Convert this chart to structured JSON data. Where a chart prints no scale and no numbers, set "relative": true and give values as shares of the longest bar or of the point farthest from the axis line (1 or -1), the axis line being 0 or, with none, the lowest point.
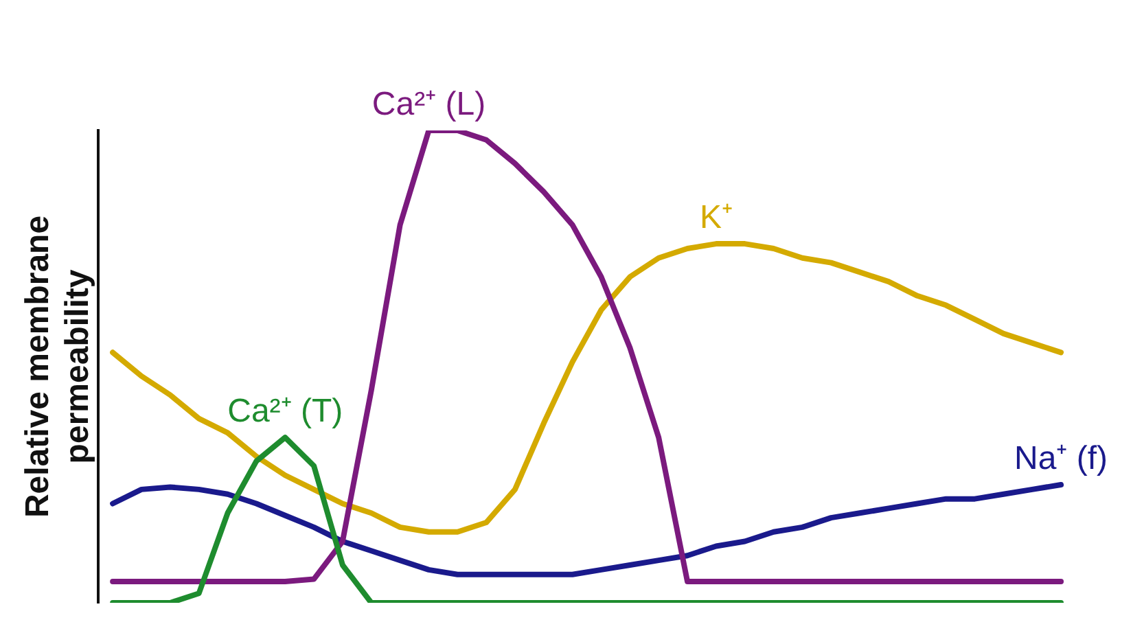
{
  "chart_data": {
    "type": "line",
    "relative": true,
    "ylabel": "Relative membrane permeability",
    "legend": false,
    "marker": "none",
    "line_style": "solid",
    "grid": false,
    "tick_labels": false,
    "categories": [
      null,
      null,
      null,
      null,
      null,
      null,
      null,
      null,
      null,
      null,
      null,
      null,
      null,
      null,
      null,
      null,
      null,
      null,
      null,
      null,
      null,
      null,
      null,
      null,
      null,
      null,
      null,
      null,
      null,
      null,
      null,
      null,
      null,
      null
    ],
    "series": [
      {
        "name": "Ca²⁺ (T)",
        "color": "#1e8c2e",
        "values": [
          0,
          0,
          0,
          0.02,
          0.19,
          0.3,
          0.35,
          0.29,
          0.08,
          0,
          0,
          0,
          0,
          0,
          0,
          0,
          0,
          0,
          0,
          0,
          0,
          0,
          0,
          0,
          0,
          0,
          0,
          0,
          0,
          0,
          0,
          0,
          0,
          0
        ]
      },
      {
        "name": "Ca²⁺ (L)",
        "color": "#7b1a7e",
        "values": [
          0.045,
          0.045,
          0.045,
          0.045,
          0.045,
          0.045,
          0.045,
          0.05,
          0.13,
          0.45,
          0.8,
          1,
          1,
          0.98,
          0.93,
          0.87,
          0.8,
          0.69,
          0.54,
          0.35,
          0.045,
          0.045,
          0.045,
          0.045,
          0.045,
          0.045,
          0.045,
          0.045,
          0.045,
          0.045,
          0.045,
          0.045,
          0.045,
          0.045
        ]
      },
      {
        "name": "K⁺",
        "color": "#d4aa00",
        "values": [
          0.53,
          0.48,
          0.44,
          0.39,
          0.36,
          0.31,
          0.27,
          0.24,
          0.21,
          0.19,
          0.16,
          0.15,
          0.15,
          0.17,
          0.24,
          0.38,
          0.51,
          0.62,
          0.69,
          0.73,
          0.75,
          0.76,
          0.76,
          0.75,
          0.73,
          0.72,
          0.7,
          0.68,
          0.65,
          0.63,
          0.6,
          0.57,
          0.55,
          0.53
        ]
      },
      {
        "name": "Na⁺ (f)",
        "color": "#1a1a8c",
        "values": [
          0.21,
          0.24,
          0.245,
          0.24,
          0.23,
          0.21,
          0.185,
          0.16,
          0.13,
          0.11,
          0.09,
          0.07,
          0.06,
          0.06,
          0.06,
          0.06,
          0.06,
          0.07,
          0.08,
          0.09,
          0.1,
          0.12,
          0.13,
          0.15,
          0.16,
          0.18,
          0.19,
          0.2,
          0.21,
          0.22,
          0.22,
          0.23,
          0.24,
          0.25
        ]
      }
    ]
  }
}
